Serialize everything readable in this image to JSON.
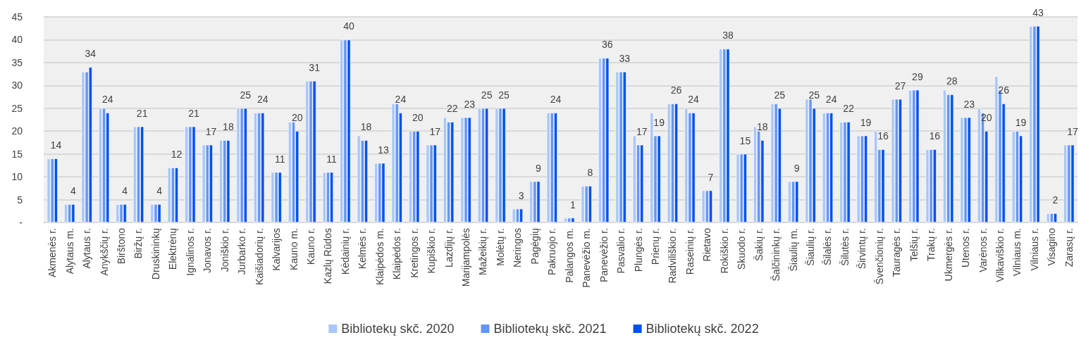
{
  "chart_data": {
    "type": "bar",
    "categories": [
      "Akmenės r.",
      "Alytaus m.",
      "Alytaus r.",
      "Anykščių r.",
      "Birštono",
      "Biržų r.",
      "Druskininkų",
      "Elektrėnų",
      "Ignalinos r.",
      "Jonavos r.",
      "Joniškio r.",
      "Jurbarko r.",
      "Kaišiadorių r.",
      "Kalvarijos",
      "Kauno m.",
      "Kauno r.",
      "Kazlų Rūdos",
      "Kėdainių r.",
      "Kelmės r.",
      "Klaipėdos m.",
      "Klaipėdos r.",
      "Kretingos r.",
      "Kupiškio r.",
      "Lazdijų r.",
      "Marijampolės",
      "Mažeikių r.",
      "Molėtų r.",
      "Neringos",
      "Pagėgių",
      "Pakruojo r.",
      "Palangos m.",
      "Panevėžio m.",
      "Panevėžio r.",
      "Pasvalio r.",
      "Plungės r.",
      "Prienų r.",
      "Radviliškio r.",
      "Raseinių r.",
      "Rietavo",
      "Rokiškio r.",
      "Skuodo r.",
      "Šakių r.",
      "Šalčininkų r.",
      "Šiaulių m.",
      "Šiaulių r.",
      "Šilalės r.",
      "Šilutės r.",
      "Širvintų r.",
      "Švenčionių r.",
      "Tauragės r.",
      "Telšių r.",
      "Trakų r.",
      "Ukmergės r.",
      "Utenos r.",
      "Varėnos r.",
      "Vilkaviškio r.",
      "Vilniaus m.",
      "Vilniaus r.",
      "Visagino",
      "Zarasų r."
    ],
    "series": [
      {
        "name": "Bibliotekų skč. 2020",
        "color": "#a9c6fc",
        "values": [
          14,
          4,
          33,
          25,
          4,
          21,
          4,
          12,
          21,
          17,
          18,
          25,
          24,
          11,
          22,
          31,
          11,
          40,
          19,
          13,
          26,
          20,
          17,
          23,
          23,
          25,
          25,
          3,
          9,
          24,
          1,
          8,
          36,
          33,
          19,
          24,
          26,
          25,
          7,
          38,
          15,
          21,
          26,
          9,
          27,
          24,
          22,
          19,
          20,
          27,
          29,
          16,
          29,
          23,
          25,
          32,
          20,
          43,
          2,
          17
        ]
      },
      {
        "name": "Bibliotekų skč. 2021",
        "color": "#6495f5",
        "values": [
          14,
          4,
          33,
          25,
          4,
          21,
          4,
          12,
          21,
          17,
          18,
          25,
          24,
          11,
          22,
          31,
          11,
          40,
          18,
          13,
          26,
          20,
          17,
          22,
          23,
          25,
          25,
          3,
          9,
          24,
          1,
          8,
          36,
          33,
          17,
          19,
          26,
          24,
          7,
          38,
          15,
          20,
          26,
          9,
          27,
          24,
          22,
          19,
          16,
          27,
          29,
          16,
          28,
          23,
          24,
          29,
          20,
          43,
          2,
          17
        ]
      },
      {
        "name": "Bibliotekų skč. 2022",
        "color": "#0050ef",
        "values": [
          14,
          4,
          34,
          24,
          4,
          21,
          4,
          12,
          21,
          17,
          18,
          25,
          24,
          11,
          20,
          31,
          11,
          40,
          18,
          13,
          24,
          20,
          17,
          22,
          23,
          25,
          25,
          3,
          9,
          24,
          1,
          8,
          36,
          33,
          17,
          19,
          26,
          24,
          7,
          38,
          15,
          18,
          25,
          9,
          25,
          24,
          22,
          19,
          16,
          27,
          29,
          16,
          28,
          23,
          20,
          26,
          19,
          43,
          2,
          17
        ],
        "value_labels": [
          "14",
          "4",
          "34",
          "24",
          "4",
          "21",
          "4",
          "12",
          "21",
          "17",
          "18",
          "25",
          "24",
          "11",
          "20",
          "31",
          "11",
          "40",
          "18",
          "13",
          "24",
          "20",
          "17",
          "22",
          "23",
          "25",
          "25",
          "3",
          "9",
          "24",
          "1",
          "8",
          "36",
          "33",
          "17",
          "19",
          "26",
          "24",
          "7",
          "38",
          "15",
          "18",
          "25",
          "9",
          "25",
          "24",
          "22",
          "19",
          "16",
          "27",
          "29",
          "16",
          "28",
          "23",
          "20",
          "26",
          "19",
          "43",
          "2",
          "17"
        ]
      }
    ],
    "ylim": [
      0,
      45
    ],
    "yticks": [
      {
        "value": 0,
        "label": "-"
      },
      5,
      10,
      15,
      20,
      25,
      30,
      35,
      40,
      45
    ],
    "grid": "y",
    "legend": "bottom"
  }
}
